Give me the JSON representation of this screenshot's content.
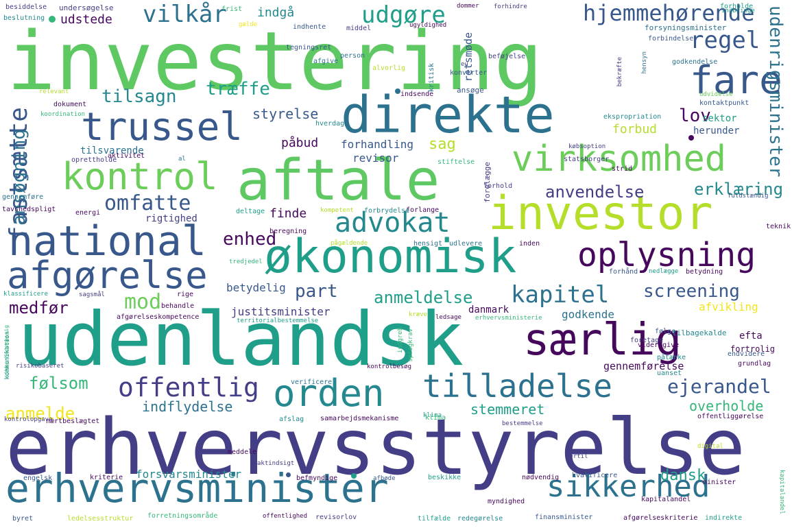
{
  "palette": {
    "dark_purple": "#46085c",
    "indigo": "#433e85",
    "slate_blue": "#38588c",
    "blue": "#2c728e",
    "teal": "#23898e",
    "sea_green": "#1f9e89",
    "green": "#35b779",
    "light_green": "#6ccd5a",
    "lime": "#b5de2b",
    "yellow": "#f1e51d"
  },
  "words": [
    "investering",
    "erhvervsstyrelse",
    "udenlandsk",
    "aftale",
    "direkte",
    "investor",
    "økonomisk",
    "erhvervsminister",
    "særlig",
    "national",
    "trussel",
    "afgørelse",
    "kontrol",
    "virksomhed",
    "orden",
    "oplysning",
    "tilladelse",
    "sikkerhed",
    "fare",
    "advokat",
    "offentlig",
    "hjemmehørende",
    "vilkår",
    "udgøre",
    "regel",
    "kapitel",
    "omfatte",
    "fastsætte",
    "mod",
    "ejerandel",
    "screening",
    "lov",
    "anvendelse",
    "tilsagn",
    "træffe",
    "anmeldelse",
    "part",
    "medfør",
    "følsom",
    "anmelde",
    "erklæring",
    "enhed",
    "udenrigsminister",
    "stemmeret",
    "overholde",
    "indflydelse",
    "dansk",
    "ansøgning",
    "styrelse",
    "sag",
    "retsmøde",
    "forbud",
    "påbud",
    "indgå",
    "forhandling",
    "udstede",
    "finde",
    "revisor",
    "betydelig",
    "danmark",
    "justitsminister",
    "godkende",
    "afvikling",
    "forsvarsminister",
    "gennemførelse",
    "rigtighed",
    "tilsvarende",
    "sektor",
    "herunder",
    "efta",
    "fortrolig",
    "forholde",
    "undersøgelse",
    "dokument",
    "indsende",
    "kontaktpunkt",
    "forsyningsminister",
    "godkendelse",
    "forbindelse",
    "indhente",
    "frist",
    "besiddelse",
    "beslutning",
    "udvidelse",
    "ansøge",
    "tegningsret",
    "afgive",
    "person",
    "beføjelse",
    "tilbagekalde",
    "videregive",
    "behandle",
    "følge",
    "statsborger",
    "strid",
    "aktivitet",
    "stiftelse",
    "forelægge",
    "forhold",
    "oprettholde",
    "gennemføre",
    "tavshedspligt",
    "energi",
    "deltage",
    "forlange",
    "ekspropriation",
    "koordination",
    "hverdag",
    "forbrydelse",
    "kompetent",
    "beregning",
    "pågældende",
    "hensigt",
    "udlevere",
    "inden",
    "forhånd",
    "nedlægge",
    "betydning",
    "klassificere",
    "rige",
    "tredjedel",
    "afgørelseskompetence",
    "territorialbestemmelse",
    "kræve",
    "ledsage",
    "erhvervsministerie",
    "foretage",
    "påtænke",
    "endvidere",
    "grundlag",
    "uanset",
    "kommunikation",
    "risikobaseret",
    "verificere",
    "kontrolbesøg",
    "kontrolopgave",
    "nærtbeslægtet",
    "afslag",
    "samarbejdsmekanisme",
    "klima",
    "bestemmelse",
    "offentliggørelse",
    "meddele",
    "hertil",
    "digital",
    "engelsk",
    "kriterie",
    "aktindsigt",
    "befmyndige",
    "afbøde",
    "beskikke",
    "nødvendig",
    "kvalificere",
    "minister",
    "myndighed",
    "byret",
    "ledelsesstruktur",
    "forretningsområde",
    "offentlighed",
    "revisorlov",
    "tilfælde",
    "redegørelse",
    "finansminister",
    "afgørelseskriterie",
    "indirekte",
    "kapitalandel",
    "teknik",
    "fuldstændig",
    "kapitalandel",
    "klima",
    "al",
    "kritisk",
    "indbringe",
    "eu",
    "konverter",
    "alvorlig",
    "middel",
    "ugyldighed",
    "gælde",
    "dommer",
    "forhindre",
    "bekræfte",
    "hensyn",
    "købsoption",
    "indgreb",
    "sprogkrav",
    "sagsmål",
    "sikkerhedsmæssig",
    "relevant",
    "sagsomkostning"
  ]
}
